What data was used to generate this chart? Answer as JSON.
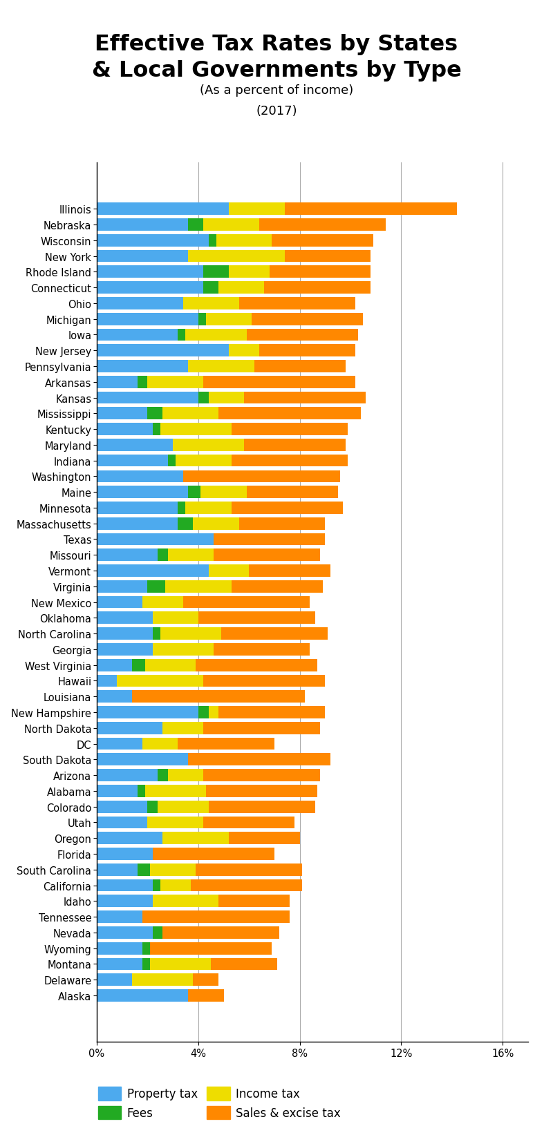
{
  "title": "Effective Tax Rates by States\n& Local Governments by Type",
  "subtitle": "(As a percent of income)",
  "year": "(2017)",
  "states": [
    "Illinois",
    "Nebraska",
    "Wisconsin",
    "New York",
    "Rhode Island",
    "Connecticut",
    "Ohio",
    "Michigan",
    "Iowa",
    "New Jersey",
    "Pennsylvania",
    "Arkansas",
    "Kansas",
    "Mississippi",
    "Kentucky",
    "Maryland",
    "Indiana",
    "Washington",
    "Maine",
    "Minnesota",
    "Massachusetts",
    "Texas",
    "Missouri",
    "Vermont",
    "Virginia",
    "New Mexico",
    "Oklahoma",
    "North Carolina",
    "Georgia",
    "West Virginia",
    "Hawaii",
    "Louisiana",
    "New Hampshire",
    "North Dakota",
    "DC",
    "South Dakota",
    "Arizona",
    "Alabama",
    "Colorado",
    "Utah",
    "Oregon",
    "Florida",
    "South Carolina",
    "California",
    "Idaho",
    "Tennessee",
    "Nevada",
    "Wyoming",
    "Montana",
    "Delaware",
    "Alaska"
  ],
  "property_tax": [
    5.2,
    3.6,
    4.4,
    3.6,
    4.2,
    4.2,
    3.4,
    4.0,
    3.2,
    5.2,
    3.6,
    1.6,
    4.0,
    2.0,
    2.2,
    3.0,
    2.8,
    3.4,
    3.6,
    3.2,
    3.2,
    4.6,
    2.4,
    4.4,
    2.0,
    1.8,
    2.2,
    2.2,
    2.2,
    1.4,
    0.8,
    1.4,
    4.0,
    2.6,
    1.8,
    3.6,
    2.4,
    1.6,
    2.0,
    2.0,
    2.6,
    2.2,
    1.6,
    2.2,
    2.2,
    1.8,
    2.2,
    1.8,
    1.8,
    1.4,
    3.6
  ],
  "fees": [
    0.0,
    0.6,
    0.3,
    0.0,
    1.0,
    0.6,
    0.0,
    0.3,
    0.3,
    0.0,
    0.0,
    0.4,
    0.4,
    0.6,
    0.3,
    0.0,
    0.3,
    0.0,
    0.5,
    0.3,
    0.6,
    0.0,
    0.4,
    0.0,
    0.7,
    0.0,
    0.0,
    0.3,
    0.0,
    0.5,
    0.0,
    0.0,
    0.4,
    0.0,
    0.0,
    0.0,
    0.4,
    0.3,
    0.4,
    0.0,
    0.0,
    0.0,
    0.5,
    0.3,
    0.0,
    0.0,
    0.4,
    0.3,
    0.3,
    0.0,
    0.0
  ],
  "income_tax": [
    2.2,
    2.2,
    2.2,
    3.8,
    1.6,
    1.8,
    2.2,
    1.8,
    2.4,
    1.2,
    2.6,
    2.2,
    1.4,
    2.2,
    2.8,
    2.8,
    2.2,
    0.0,
    1.8,
    1.8,
    1.8,
    0.0,
    1.8,
    1.6,
    2.6,
    1.6,
    1.8,
    2.4,
    2.4,
    2.0,
    3.4,
    0.0,
    0.4,
    1.6,
    1.4,
    0.0,
    1.4,
    2.4,
    2.0,
    2.2,
    2.6,
    0.0,
    1.8,
    1.2,
    2.6,
    0.0,
    0.0,
    0.0,
    2.4,
    2.4,
    0.0
  ],
  "sales_excise": [
    6.8,
    5.0,
    4.0,
    3.4,
    4.0,
    4.2,
    4.6,
    4.4,
    4.4,
    3.8,
    3.6,
    6.0,
    4.8,
    5.6,
    4.6,
    4.0,
    4.6,
    6.2,
    3.6,
    4.4,
    3.4,
    4.4,
    4.2,
    3.2,
    3.6,
    5.0,
    4.6,
    4.2,
    3.8,
    4.8,
    4.8,
    6.8,
    4.2,
    4.6,
    3.8,
    5.6,
    4.6,
    4.4,
    4.2,
    3.6,
    2.8,
    4.8,
    4.2,
    4.4,
    2.8,
    5.8,
    4.6,
    4.8,
    2.6,
    1.0,
    1.4
  ],
  "colors": {
    "property_tax": "#4DAAEE",
    "fees": "#22AA22",
    "income_tax": "#EEDD00",
    "sales_excise": "#FF8800"
  },
  "xlim": [
    0,
    17
  ],
  "xticks": [
    0,
    4,
    8,
    12,
    16
  ],
  "xticklabels": [
    "0%",
    "4%",
    "8%",
    "12%",
    "16%"
  ],
  "background_color": "#FFFFFF",
  "title_fontsize": 23,
  "subtitle_fontsize": 13,
  "year_fontsize": 13,
  "tick_fontsize": 10.5,
  "bar_height": 0.78
}
